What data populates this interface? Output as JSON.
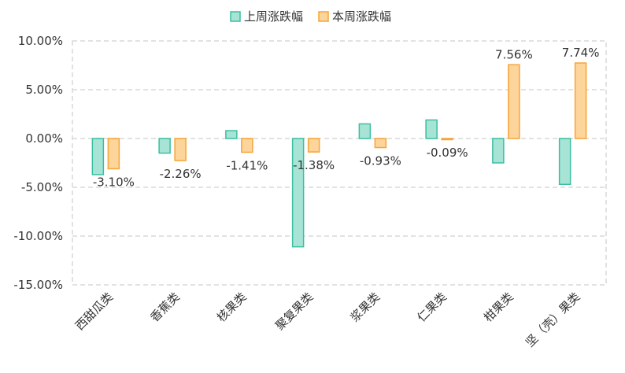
{
  "chart_data": {
    "type": "bar",
    "categories": [
      "西甜瓜类",
      "香蕉类",
      "核果类",
      "聚复果类",
      "浆果类",
      "仁果类",
      "柑果类",
      "坚（壳）果类"
    ],
    "series": [
      {
        "name": "上周涨跌幅",
        "values": [
          -3.7,
          -1.5,
          0.8,
          -11.1,
          1.5,
          1.9,
          -2.5,
          -4.7
        ],
        "color": "#a8e4d6",
        "stroke": "#3bbfa0"
      },
      {
        "name": "本周涨跌幅",
        "values": [
          -3.1,
          -2.26,
          -1.41,
          -1.38,
          -0.93,
          -0.09,
          7.56,
          7.74
        ],
        "color": "#fdd49a",
        "stroke": "#f5a53a"
      }
    ],
    "data_labels": [
      "-3.10%",
      "-2.26%",
      "-1.41%",
      "-1.38%",
      "-0.93%",
      "-0.09%",
      "7.56%",
      "7.74%"
    ],
    "yticks": [
      "10.00%",
      "5.00%",
      "0.00%",
      "-5.00%",
      "-10.00%",
      "-15.00%"
    ],
    "ylim": [
      -15,
      10
    ],
    "grid": true,
    "legend_position": "top-center"
  }
}
